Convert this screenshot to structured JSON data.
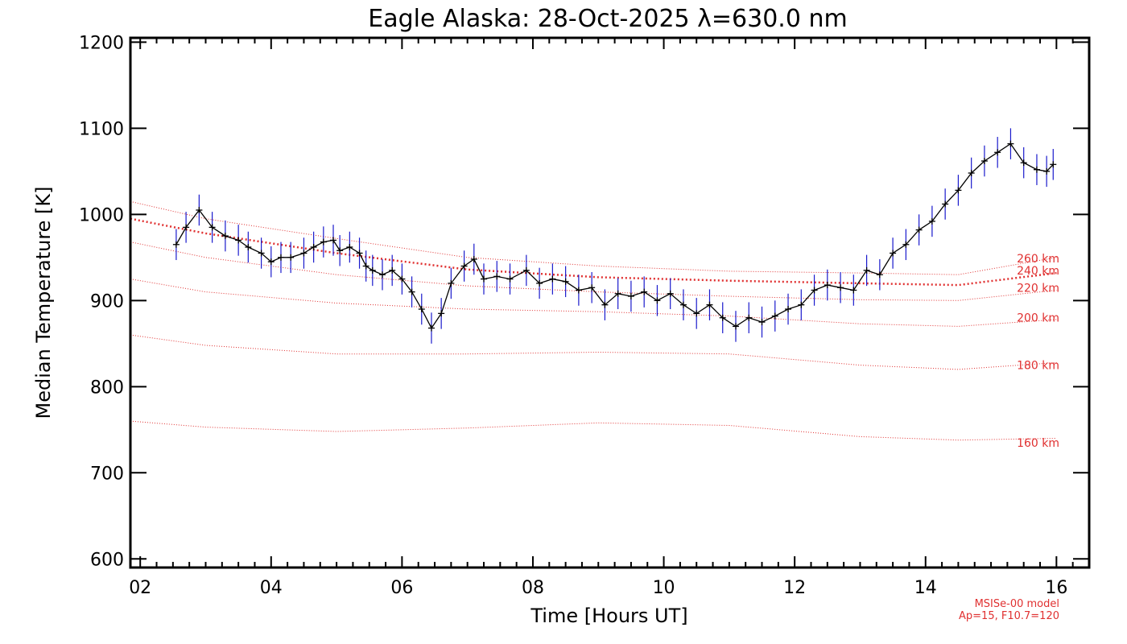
{
  "chart_data": {
    "type": "line",
    "title": "Eagle Alaska: 28-Oct-2025 λ=630.0 nm",
    "xlabel": "Time [Hours UT]",
    "ylabel": "Median Temperature [K]",
    "xlim": [
      1.85,
      16.5
    ],
    "ylim": [
      590,
      1205
    ],
    "x_ticks": [
      2,
      4,
      6,
      8,
      10,
      12,
      14,
      16
    ],
    "x_tick_labels": [
      "02",
      "04",
      "06",
      "08",
      "10",
      "12",
      "14",
      "16"
    ],
    "y_ticks": [
      600,
      700,
      800,
      900,
      1000,
      1100,
      1200
    ],
    "y_tick_labels": [
      "600",
      "700",
      "800",
      "900",
      "1000",
      "1100",
      "1200"
    ],
    "grid": false,
    "colors": {
      "measurement": "#000000",
      "error_bars": "#1a1acc",
      "model": "#e03030"
    },
    "footnote": [
      "MSISe-00 model",
      "Ap=15, F10.7=120"
    ],
    "measurement": {
      "name": "",
      "x": [
        2.55,
        2.7,
        2.9,
        3.1,
        3.3,
        3.5,
        3.65,
        3.85,
        4.0,
        4.15,
        4.3,
        4.5,
        4.65,
        4.8,
        4.95,
        5.05,
        5.2,
        5.35,
        5.45,
        5.55,
        5.7,
        5.85,
        6.0,
        6.15,
        6.3,
        6.45,
        6.6,
        6.75,
        6.95,
        7.1,
        7.25,
        7.45,
        7.65,
        7.9,
        8.1,
        8.3,
        8.5,
        8.7,
        8.9,
        9.1,
        9.3,
        9.5,
        9.7,
        9.9,
        10.1,
        10.3,
        10.5,
        10.7,
        10.9,
        11.1,
        11.3,
        11.5,
        11.7,
        11.9,
        12.1,
        12.3,
        12.5,
        12.7,
        12.9,
        13.1,
        13.3,
        13.5,
        13.7,
        13.9,
        14.1,
        14.3,
        14.5,
        14.7,
        14.9,
        15.1,
        15.3,
        15.5,
        15.7,
        15.85,
        15.95
      ],
      "y": [
        965,
        985,
        1005,
        985,
        975,
        970,
        962,
        955,
        945,
        950,
        950,
        955,
        962,
        968,
        970,
        958,
        962,
        955,
        940,
        935,
        930,
        935,
        925,
        910,
        890,
        868,
        885,
        920,
        940,
        948,
        925,
        928,
        925,
        935,
        920,
        925,
        922,
        912,
        915,
        895,
        908,
        905,
        910,
        900,
        908,
        895,
        885,
        895,
        880,
        870,
        880,
        875,
        882,
        890,
        895,
        912,
        918,
        915,
        912,
        935,
        930,
        955,
        965,
        982,
        992,
        1012,
        1028,
        1048,
        1062,
        1072,
        1082,
        1060,
        1052,
        1050,
        1058
      ],
      "error": 18
    },
    "model_series": [
      {
        "name": "160 km",
        "x": [
          1.85,
          3,
          5,
          7,
          9,
          11,
          13,
          14.5,
          16
        ],
        "values": [
          760,
          753,
          748,
          752,
          758,
          755,
          742,
          738,
          740
        ]
      },
      {
        "name": "180 km",
        "x": [
          1.85,
          3,
          5,
          7,
          9,
          11,
          13,
          14.5,
          16
        ],
        "values": [
          860,
          848,
          838,
          838,
          840,
          838,
          825,
          820,
          828
        ]
      },
      {
        "name": "200 km",
        "x": [
          1.85,
          3,
          5,
          7,
          9,
          11,
          13,
          14.5,
          16
        ],
        "values": [
          925,
          910,
          897,
          890,
          887,
          882,
          873,
          870,
          878
        ]
      },
      {
        "name": "220 km",
        "x": [
          1.85,
          3,
          5,
          7,
          9,
          11,
          13,
          14.5,
          16
        ],
        "values": [
          968,
          950,
          930,
          917,
          910,
          905,
          901,
          900,
          912
        ]
      },
      {
        "name": "240 km",
        "x": [
          1.85,
          3,
          5,
          7,
          9,
          11,
          13,
          14.5,
          16
        ],
        "values": [
          995,
          978,
          955,
          936,
          927,
          923,
          920,
          918,
          932
        ]
      },
      {
        "name": "260 km",
        "x": [
          1.85,
          3,
          5,
          7,
          9,
          11,
          13,
          14.5,
          16
        ],
        "values": [
          1015,
          995,
          972,
          950,
          940,
          934,
          932,
          930,
          950
        ]
      }
    ],
    "model_labels": [
      {
        "text": "260 km",
        "y": 949
      },
      {
        "text": "240 km",
        "y": 935
      },
      {
        "text": "220 km",
        "y": 915
      },
      {
        "text": "200 km",
        "y": 880
      },
      {
        "text": "180 km",
        "y": 825
      },
      {
        "text": "160 km",
        "y": 735
      }
    ]
  }
}
